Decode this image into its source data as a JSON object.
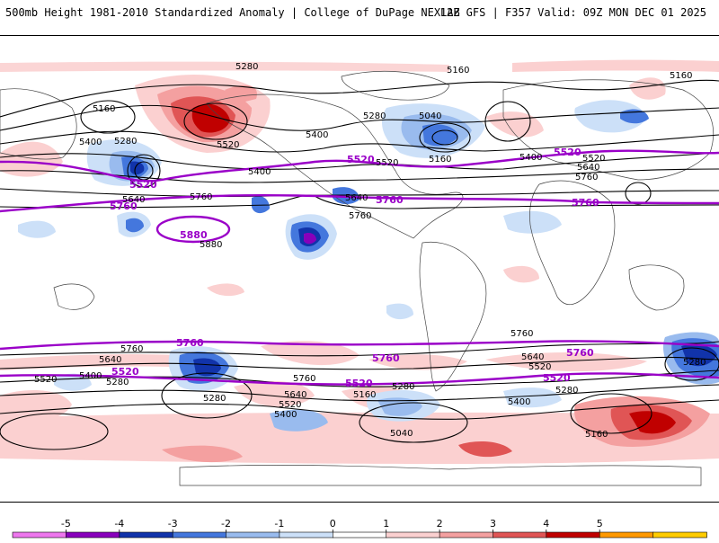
{
  "header": {
    "left_title": "500mb Height 1981-2010 Standardized Anomaly | College of DuPage NEXLAB",
    "right_title": "12Z GFS | F357 Valid: 09Z MON DEC 01 2025"
  },
  "colorbar": {
    "ticks": [
      "-5",
      "-4",
      "-3",
      "-2",
      "-1",
      "0",
      "1",
      "2",
      "3",
      "4",
      "5"
    ],
    "colors": [
      "#ee77ee",
      "#8800bb",
      "#1133aa",
      "#4477dd",
      "#99bbee",
      "#cce0f8",
      "#ffffff",
      "#fbd0d0",
      "#f4a0a0",
      "#e05555",
      "#c00000",
      "#ff9900",
      "#ffcc00"
    ]
  },
  "map": {
    "contour_labels_black": [
      "5280",
      "5160",
      "5160",
      "5160",
      "5400",
      "5280",
      "5520",
      "5400",
      "5400",
      "5280",
      "5040",
      "5520",
      "5160",
      "5400",
      "5520",
      "5640",
      "5760",
      "5640",
      "5760",
      "5640",
      "5760",
      "5880",
      "5760",
      "5640",
      "5520",
      "5400",
      "5280",
      "5760",
      "5640",
      "5520",
      "5400",
      "5280",
      "5160",
      "5040",
      "5280",
      "5760",
      "5640",
      "5520",
      "5280",
      "5400",
      "5160",
      "5280"
    ],
    "contour_labels_purple": [
      "5520",
      "5760",
      "5880",
      "5520",
      "5760",
      "5520",
      "5760",
      "5760",
      "5520",
      "5760",
      "5520",
      "5520",
      "5760"
    ],
    "anomaly_colors": {
      "strong_positive": "#c00000",
      "positive": "#e05555",
      "weak_positive": "#fbd0d0",
      "weak_negative": "#cce0f8",
      "negative": "#4477dd",
      "strong_negative": "#1133aa",
      "extreme_negative": "#8800bb",
      "contour_black": "#000000",
      "contour_purple": "#9a00c8"
    }
  }
}
